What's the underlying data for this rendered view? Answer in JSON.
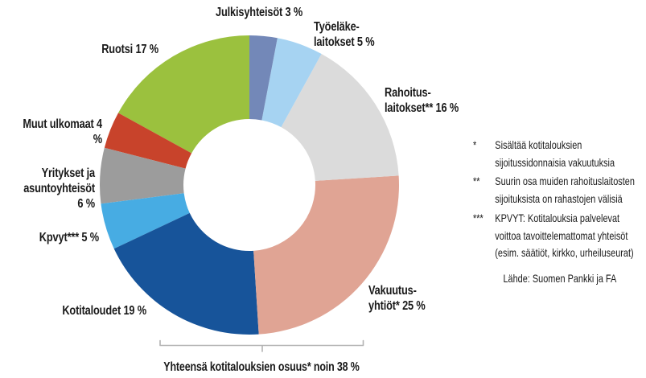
{
  "chart_data": {
    "type": "pie",
    "variant": "donut",
    "direction": "clockwise",
    "start_angle_deg": 0,
    "title": "",
    "slices": [
      {
        "label": "Julkisyhteisöt",
        "display": "Julkisyhteisöt 3 %",
        "value": 3,
        "color": "#7388B8"
      },
      {
        "label": "Työeläkelaitokset",
        "display": "Työeläke-\nlaitokset 5 %",
        "value": 5,
        "color": "#A6D3F2"
      },
      {
        "label": "Rahoituslaitokset",
        "display": "Rahoitus-\nlaitokset** 16 %",
        "value": 16,
        "color": "#DBDBDB"
      },
      {
        "label": "Vakuutusyhtiöt",
        "display": "Vakuutus-\nyhtiöt* 25 %",
        "value": 25,
        "color": "#E0A494"
      },
      {
        "label": "Kotitaloudet",
        "display": "Kotitaloudet 19 %",
        "value": 19,
        "color": "#17549A"
      },
      {
        "label": "Kpvyt",
        "display": "Kpvyt*** 5 %",
        "value": 5,
        "color": "#47ACE3"
      },
      {
        "label": "Yritykset ja asuntoyhteisöt",
        "display": "Yritykset ja\nasuntoyhteisöt 6 %",
        "value": 6,
        "color": "#9C9C9C"
      },
      {
        "label": "Muut ulkomaat",
        "display": "Muut ulkomaat 4 %",
        "value": 4,
        "color": "#C8432B"
      },
      {
        "label": "Ruotsi",
        "display": "Ruotsi 17 %",
        "value": 17,
        "color": "#9BC13E"
      }
    ],
    "total_annotation": "Yhteensä kotitalouksien osuus* noin 38 %",
    "brace_color": "#B3B3B3"
  },
  "notes": [
    {
      "marker": "*",
      "text": "Sisältää kotitalouksien\nsijoitussidonnaisia vakuutuksia"
    },
    {
      "marker": "**",
      "text": "Suurin osa muiden rahoituslaitosten\nsijoituksista on rahastojen välisiä"
    },
    {
      "marker": "***",
      "text": "KPVYT: Kotitalouksia palvelevat\nvoittoa tavoittelemattomat yhteisöt\n(esim. säätiöt, kirkko, urheiluseurat)"
    }
  ],
  "source": "Lähde: Suomen Pankki ja FA"
}
